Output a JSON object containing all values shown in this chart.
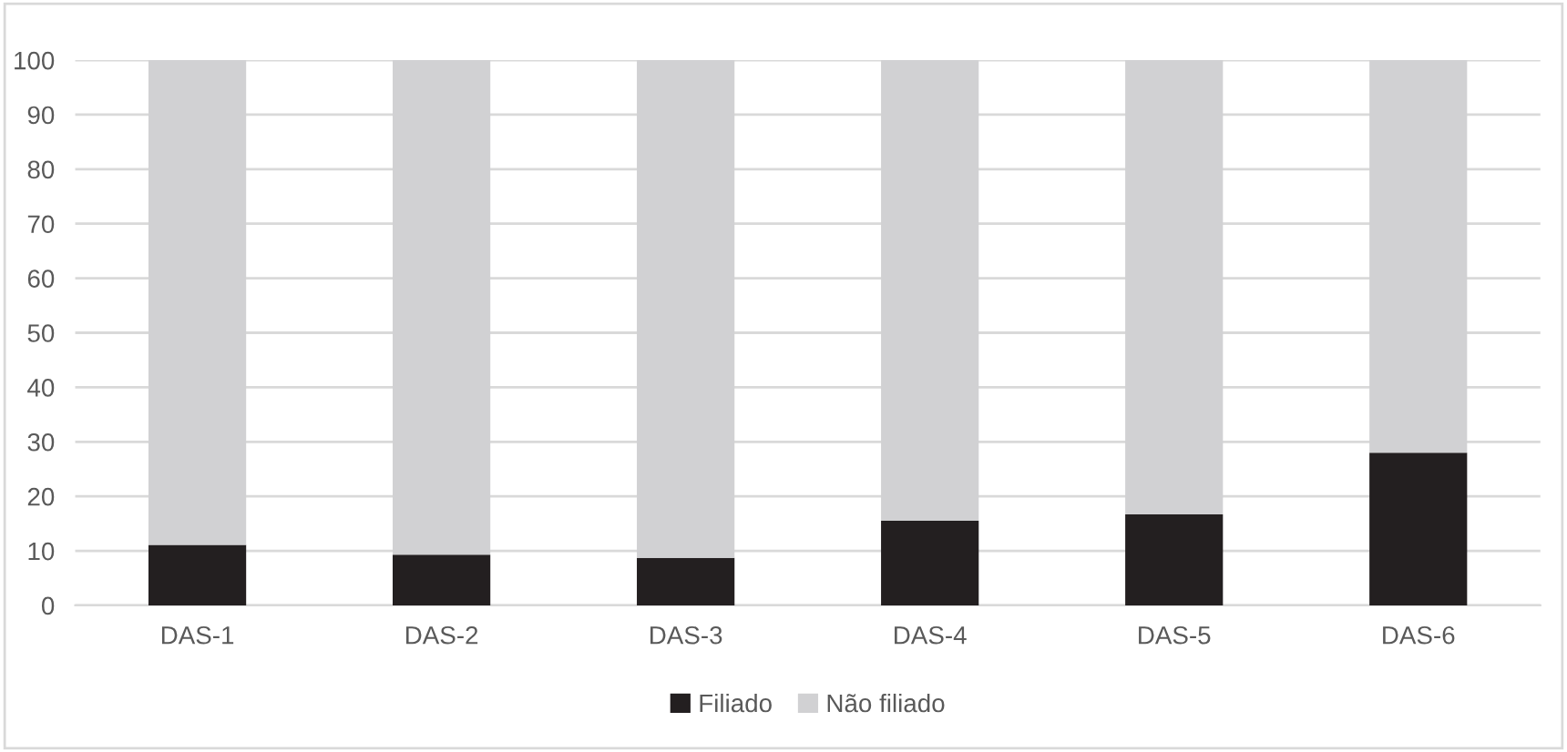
{
  "chart_data": {
    "type": "bar",
    "stacked": true,
    "categories": [
      "DAS-1",
      "DAS-2",
      "DAS-3",
      "DAS-4",
      "DAS-5",
      "DAS-6"
    ],
    "series": [
      {
        "name": "Filiado",
        "color": "#231f20",
        "values": [
          11.1,
          9.3,
          8.7,
          15.5,
          16.7,
          28.0
        ]
      },
      {
        "name": "Não filiado",
        "color": "#d1d1d3",
        "values": [
          88.9,
          90.7,
          91.3,
          84.5,
          83.3,
          72.0
        ]
      }
    ],
    "ylim": [
      0,
      100
    ],
    "yticks": [
      0,
      10,
      20,
      30,
      40,
      50,
      60,
      70,
      80,
      90,
      100
    ],
    "grid": "y",
    "legend": "bottom"
  }
}
